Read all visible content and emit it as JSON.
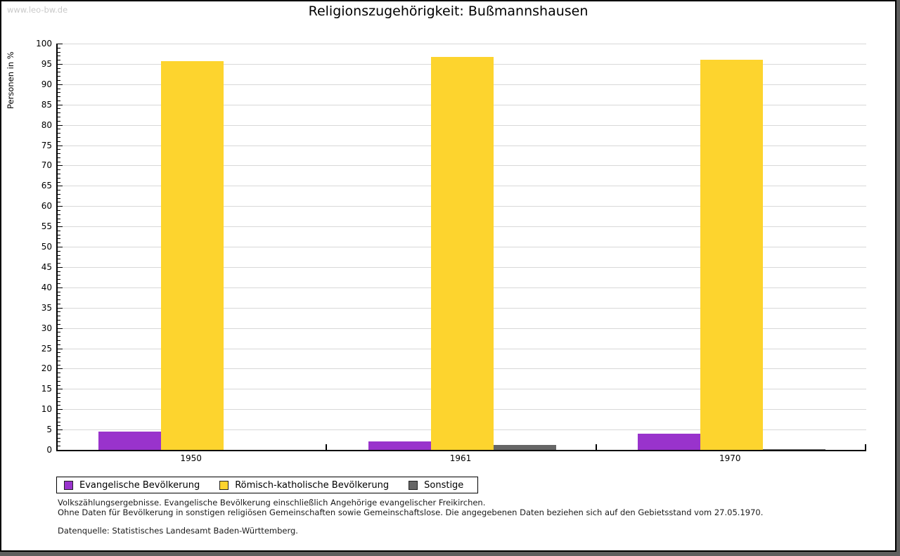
{
  "watermark": "www.leo-bw.de",
  "chart_data": {
    "type": "bar",
    "title": "Religionszugehörigkeit: Bußmannshausen",
    "xlabel": "",
    "ylabel": "Personen in %",
    "ylim": [
      0,
      100
    ],
    "ytick_step": 5,
    "yticks": [
      0,
      5,
      10,
      15,
      20,
      25,
      30,
      35,
      40,
      45,
      50,
      55,
      60,
      65,
      70,
      75,
      80,
      85,
      90,
      95,
      100
    ],
    "grid": true,
    "legend_position": "bottom",
    "categories": [
      "1950",
      "1961",
      "1970"
    ],
    "series": [
      {
        "name": "Evangelische Bevölkerung",
        "color": "#9933cc",
        "values": [
          4.5,
          2.0,
          4.0
        ]
      },
      {
        "name": "Römisch-katholische Bevölkerung",
        "color": "#fdd42e",
        "values": [
          95.6,
          96.7,
          96.0
        ]
      },
      {
        "name": "Sonstige",
        "color": "#666666",
        "values": [
          0.0,
          1.3,
          0.2
        ]
      }
    ]
  },
  "footnotes": {
    "line1": "Volkszählungsergebnisse. Evangelische Bevölkerung einschließlich Angehörige evangelischer Freikirchen.",
    "line2": "Ohne Daten für Bevölkerung in sonstigen religiösen Gemeinschaften sowie Gemeinschaftslose. Die angegebenen Daten beziehen sich auf den Gebietsstand vom 27.05.1970.",
    "source": "Datenquelle: Statistisches Landesamt Baden-Württemberg."
  },
  "colors": {
    "page_background": "#ffffff",
    "page_border": "#000000",
    "shadow": "#5e5e5e",
    "gridline": "#d8d8d8",
    "watermark": "#c9c9c9",
    "evangelisch": "#9933cc",
    "katholisch": "#fdd42e",
    "sonstige": "#666666"
  }
}
